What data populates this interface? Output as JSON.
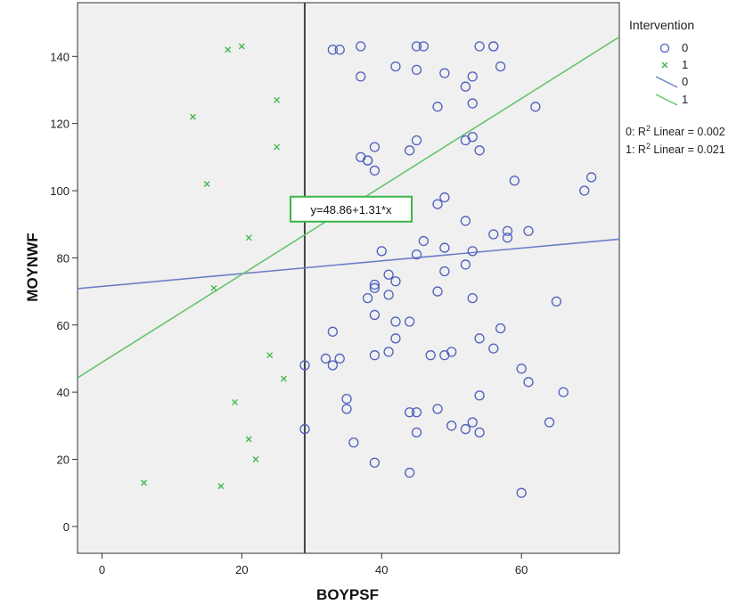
{
  "chart_data": {
    "type": "scatter",
    "title": "",
    "xlabel": "BOYPSF",
    "ylabel": "MOYNWF",
    "xlim": [
      -3.5,
      74
    ],
    "ylim": [
      -8,
      156
    ],
    "xticks": [
      0,
      20,
      40,
      60
    ],
    "yticks": [
      0,
      20,
      40,
      60,
      80,
      100,
      120,
      140
    ],
    "grid": false,
    "reference_line_x": 29,
    "legend": {
      "title": "Intervention",
      "placement": "right",
      "entries": [
        {
          "label": "0",
          "kind": "marker-circle",
          "color": "#4f5fbf"
        },
        {
          "label": "1",
          "kind": "marker-x",
          "color": "#3cb54a"
        },
        {
          "label": "0",
          "kind": "line",
          "color": "#6b7fc8"
        },
        {
          "label": "1",
          "kind": "line",
          "color": "#66c46c"
        }
      ]
    },
    "r2_lines": [
      {
        "prefix": "0: R",
        "suffix": " Linear = 0.002"
      },
      {
        "prefix": "1: R",
        "suffix": " Linear = 0.021"
      }
    ],
    "annotation": {
      "text": "y=48.86+1.31*x",
      "x": 35,
      "y": 94.5
    },
    "fit_lines": [
      {
        "name": "0",
        "intercept": 71.5,
        "slope": 0.19,
        "color": "#6b7fc8"
      },
      {
        "name": "1",
        "intercept": 48.86,
        "slope": 1.31,
        "color": "#66c46c"
      }
    ],
    "series": [
      {
        "name": "0",
        "marker": "circle",
        "color": "#4f5fbf",
        "points": [
          [
            33,
            142
          ],
          [
            34,
            142
          ],
          [
            37,
            143
          ],
          [
            45,
            143
          ],
          [
            46,
            143
          ],
          [
            54,
            143
          ],
          [
            56,
            143
          ],
          [
            56,
            143
          ],
          [
            37,
            134
          ],
          [
            42,
            137
          ],
          [
            45,
            136
          ],
          [
            49,
            135
          ],
          [
            52,
            131
          ],
          [
            53,
            134
          ],
          [
            57,
            137
          ],
          [
            48,
            125
          ],
          [
            53,
            126
          ],
          [
            62,
            125
          ],
          [
            37,
            110
          ],
          [
            38,
            109
          ],
          [
            38,
            109
          ],
          [
            39,
            113
          ],
          [
            39,
            106
          ],
          [
            44,
            112
          ],
          [
            45,
            115
          ],
          [
            52,
            115
          ],
          [
            53,
            116
          ],
          [
            54,
            112
          ],
          [
            59,
            103
          ],
          [
            69,
            100
          ],
          [
            70,
            104
          ],
          [
            48,
            96
          ],
          [
            49,
            98
          ],
          [
            40,
            82
          ],
          [
            45,
            81
          ],
          [
            46,
            85
          ],
          [
            49,
            83
          ],
          [
            52,
            91
          ],
          [
            53,
            82
          ],
          [
            56,
            87
          ],
          [
            58,
            88
          ],
          [
            58,
            86
          ],
          [
            61,
            88
          ],
          [
            52,
            78
          ],
          [
            49,
            76
          ],
          [
            39,
            72
          ],
          [
            39,
            71
          ],
          [
            41,
            75
          ],
          [
            42,
            73
          ],
          [
            38,
            68
          ],
          [
            41,
            69
          ],
          [
            48,
            70
          ],
          [
            53,
            68
          ],
          [
            65,
            67
          ],
          [
            39,
            63
          ],
          [
            42,
            61
          ],
          [
            42,
            56
          ],
          [
            44,
            61
          ],
          [
            57,
            59
          ],
          [
            54,
            56
          ],
          [
            56,
            53
          ],
          [
            33,
            58
          ],
          [
            29,
            48
          ],
          [
            32,
            50
          ],
          [
            33,
            48
          ],
          [
            34,
            50
          ],
          [
            39,
            51
          ],
          [
            41,
            52
          ],
          [
            47,
            51
          ],
          [
            49,
            51
          ],
          [
            50,
            52
          ],
          [
            60,
            47
          ],
          [
            61,
            43
          ],
          [
            66,
            40
          ],
          [
            35,
            38
          ],
          [
            35,
            35
          ],
          [
            44,
            34
          ],
          [
            45,
            34
          ],
          [
            48,
            35
          ],
          [
            54,
            39
          ],
          [
            29,
            29
          ],
          [
            36,
            25
          ],
          [
            45,
            28
          ],
          [
            50,
            30
          ],
          [
            52,
            29
          ],
          [
            53,
            31
          ],
          [
            54,
            28
          ],
          [
            64,
            31
          ],
          [
            39,
            19
          ],
          [
            44,
            16
          ],
          [
            60,
            10
          ]
        ]
      },
      {
        "name": "1",
        "marker": "x",
        "color": "#3cb54a",
        "points": [
          [
            18,
            142
          ],
          [
            20,
            143
          ],
          [
            13,
            122
          ],
          [
            25,
            127
          ],
          [
            25,
            113
          ],
          [
            15,
            102
          ],
          [
            21,
            86
          ],
          [
            16,
            71
          ],
          [
            24,
            51
          ],
          [
            26,
            44
          ],
          [
            19,
            37
          ],
          [
            21,
            26
          ],
          [
            22,
            20
          ],
          [
            6,
            13
          ],
          [
            17,
            12
          ]
        ]
      }
    ]
  }
}
